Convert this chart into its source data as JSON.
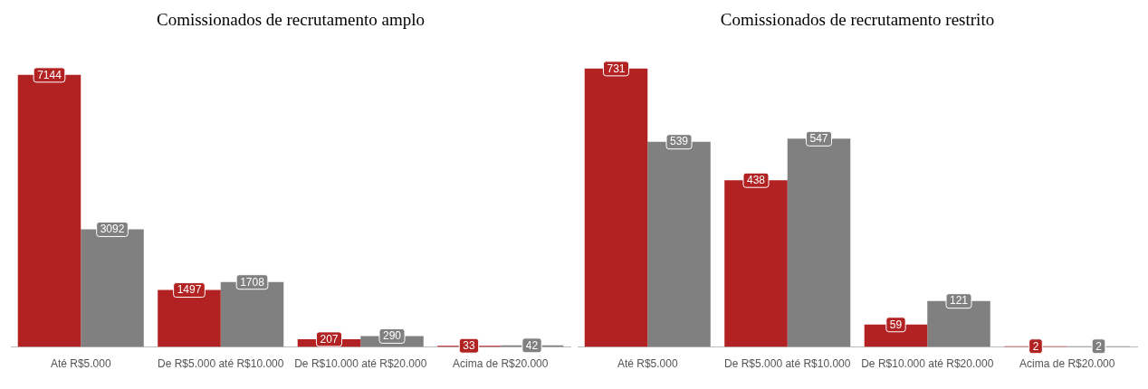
{
  "chart_data": [
    {
      "type": "bar",
      "title": "Comissionados de recrutamento amplo",
      "categories": [
        "Até R$5.000",
        "De R$5.000 até R$10.000",
        "De R$10.000 até R$20.000",
        "Acima de R$20.000"
      ],
      "series": [
        {
          "color": "#b22222",
          "values": [
            7144,
            1497,
            207,
            33
          ]
        },
        {
          "color": "#808080",
          "values": [
            3092,
            1708,
            290,
            42
          ]
        }
      ],
      "data_labels": true,
      "tick_labels": "x",
      "grid": false,
      "legend": false
    },
    {
      "type": "bar",
      "title": "Comissionados de recrutamento restrito",
      "categories": [
        "Até R$5.000",
        "De R$5.000 até R$10.000",
        "De R$10.000 até R$20.000",
        "Acima de R$20.000"
      ],
      "series": [
        {
          "color": "#b22222",
          "values": [
            731,
            438,
            59,
            2
          ]
        },
        {
          "color": "#808080",
          "values": [
            539,
            547,
            121,
            2
          ]
        }
      ],
      "data_labels": true,
      "tick_labels": "x",
      "grid": false,
      "legend": false
    }
  ]
}
